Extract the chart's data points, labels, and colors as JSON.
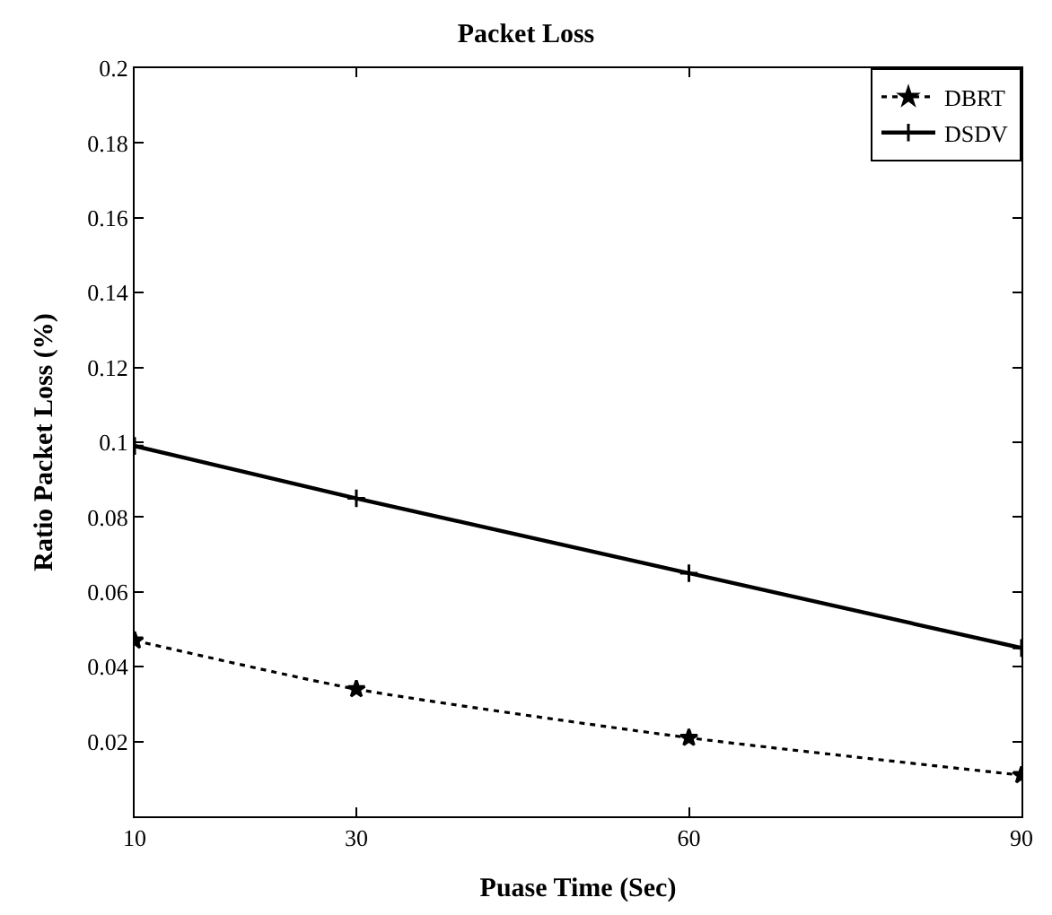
{
  "chart_data": {
    "type": "line",
    "title": "Packet Loss",
    "xlabel": "Puase Time (Sec)",
    "ylabel": "Ratio Packet Loss (%)",
    "x": [
      10,
      30,
      60,
      90
    ],
    "series": [
      {
        "name": "DBRT",
        "color": "#000000",
        "values": [
          0.047,
          0.034,
          0.021,
          0.011
        ],
        "line_style": "dotted",
        "marker": "star"
      },
      {
        "name": "DSDV",
        "color": "#000000",
        "values": [
          0.099,
          0.085,
          0.065,
          0.045
        ],
        "line_style": "solid",
        "marker": "cross"
      }
    ],
    "xlim": [
      10,
      90
    ],
    "xticks": [
      10,
      30,
      60,
      90
    ],
    "ylim": [
      0,
      0.2
    ],
    "yticks": [
      0.02,
      0.04,
      0.06,
      0.08,
      0.1,
      0.12,
      0.14,
      0.16,
      0.18,
      0.2
    ],
    "grid": false,
    "legend": "top right"
  }
}
